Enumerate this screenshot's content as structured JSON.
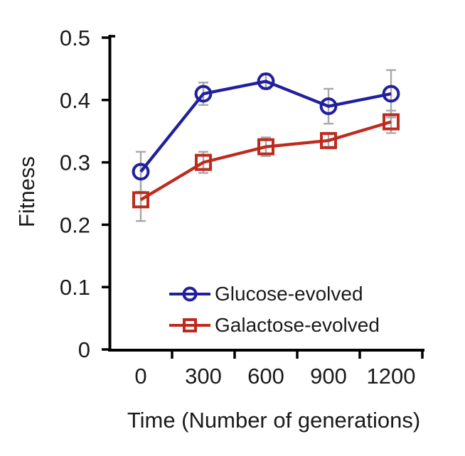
{
  "chart_data": {
    "type": "line",
    "title": "",
    "xlabel": "Time (Number of generations)",
    "ylabel": "Fitness",
    "x": [
      0,
      300,
      600,
      900,
      1200
    ],
    "x_tick_labels": [
      "0",
      "300",
      "600",
      "900",
      "1200"
    ],
    "y_ticks": [
      0,
      0.1,
      0.2,
      0.3,
      0.4,
      0.5
    ],
    "y_tick_labels": [
      "0",
      "0.1",
      "0.2",
      "0.3",
      "0.4",
      "0.5"
    ],
    "ylim": [
      0,
      0.5
    ],
    "grid": false,
    "legend_position": "inside lower right",
    "series": [
      {
        "name": "Glucose-evolved",
        "marker": "circle",
        "color": "#20209E",
        "values": [
          0.285,
          0.41,
          0.43,
          0.39,
          0.41
        ],
        "error": [
          0.032,
          0.018,
          0.012,
          0.028,
          0.038
        ]
      },
      {
        "name": "Galactose-evolved",
        "marker": "square",
        "color": "#BE2B1E",
        "values": [
          0.24,
          0.3,
          0.325,
          0.335,
          0.365
        ],
        "error": [
          0.034,
          0.017,
          0.015,
          0.01,
          0.018
        ]
      }
    ],
    "error_bar_color": "#A8A8A8",
    "axis_color": "#000000",
    "text_color": "#1A1A1A"
  }
}
